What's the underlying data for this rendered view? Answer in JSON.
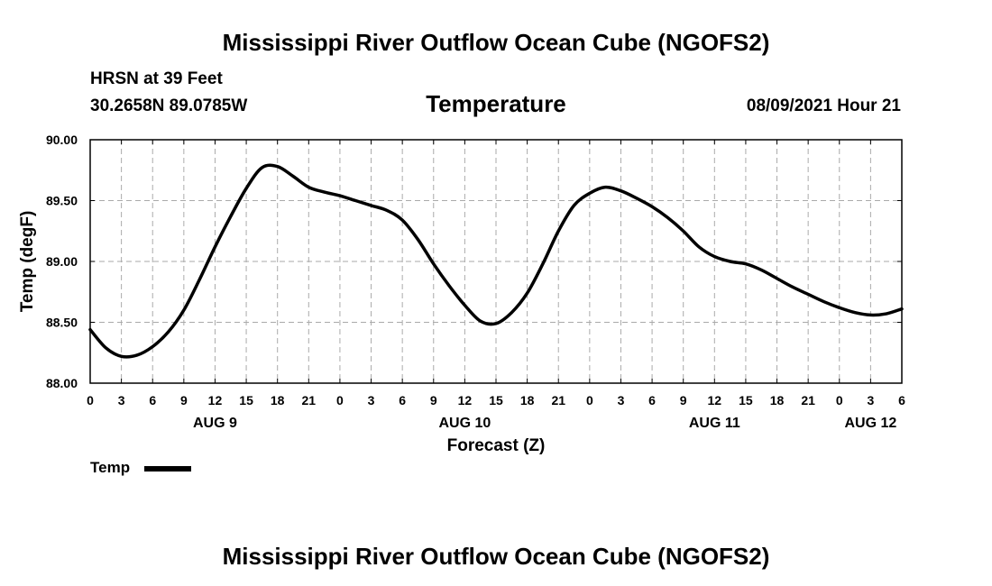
{
  "title_top": "Mississippi River Outflow Ocean Cube (NGOFS2)",
  "title_bottom": "Mississippi River Outflow Ocean Cube (NGOFS2)",
  "station": {
    "name": "HRSN at 39 Feet",
    "coords": "30.2658N  89.0785W"
  },
  "panel_title": "Temperature",
  "timestamp": "08/09/2021 Hour 21",
  "legend": {
    "label": "Temp"
  },
  "chart_data": {
    "type": "line",
    "title": "Temperature",
    "xlabel": "Forecast (Z)",
    "ylabel": "Temp (degF)",
    "xlim": [
      0,
      78
    ],
    "ylim": [
      88.0,
      90.0
    ],
    "yticks": [
      88.0,
      88.5,
      89.0,
      89.5,
      90.0
    ],
    "ytick_labels": [
      "88.00",
      "88.50",
      "89.00",
      "89.50",
      "90.00"
    ],
    "xtick_labels": [
      "0",
      "3",
      "6",
      "9",
      "12",
      "15",
      "18",
      "21",
      "0",
      "3",
      "6",
      "9",
      "12",
      "15",
      "18",
      "21",
      "0",
      "3",
      "6",
      "9",
      "12",
      "15",
      "18",
      "21",
      "0",
      "3",
      "6"
    ],
    "day_labels": [
      {
        "label": "AUG 9",
        "hour": 12
      },
      {
        "label": "AUG 10",
        "hour": 36
      },
      {
        "label": "AUG 11",
        "hour": 60
      },
      {
        "label": "AUG 12",
        "hour": 75
      }
    ],
    "grid": true,
    "series": [
      {
        "name": "Temp",
        "x": [
          0,
          1.5,
          3,
          4.5,
          6,
          7.5,
          9,
          10.5,
          12,
          13.5,
          15,
          16.5,
          18,
          19.5,
          21,
          22.5,
          24,
          25.5,
          27,
          28.5,
          30,
          31.5,
          33,
          34.5,
          36,
          37.5,
          39,
          40.5,
          42,
          43.5,
          45,
          46.5,
          48,
          49.5,
          51,
          52.5,
          54,
          55.5,
          57,
          58.5,
          60,
          61.5,
          63,
          64.5,
          66,
          67.5,
          69,
          70.5,
          72,
          73.5,
          75,
          76.5,
          78
        ],
        "values": [
          88.44,
          88.29,
          88.22,
          88.23,
          88.3,
          88.42,
          88.6,
          88.85,
          89.12,
          89.37,
          89.6,
          89.77,
          89.78,
          89.7,
          89.61,
          89.57,
          89.54,
          89.5,
          89.46,
          89.42,
          89.34,
          89.18,
          88.98,
          88.8,
          88.64,
          88.51,
          88.49,
          88.58,
          88.74,
          88.98,
          89.25,
          89.46,
          89.56,
          89.61,
          89.58,
          89.52,
          89.45,
          89.36,
          89.25,
          89.12,
          89.04,
          89.0,
          88.98,
          88.93,
          88.86,
          88.79,
          88.73,
          88.67,
          88.62,
          88.58,
          88.56,
          88.57,
          88.61
        ]
      }
    ]
  }
}
